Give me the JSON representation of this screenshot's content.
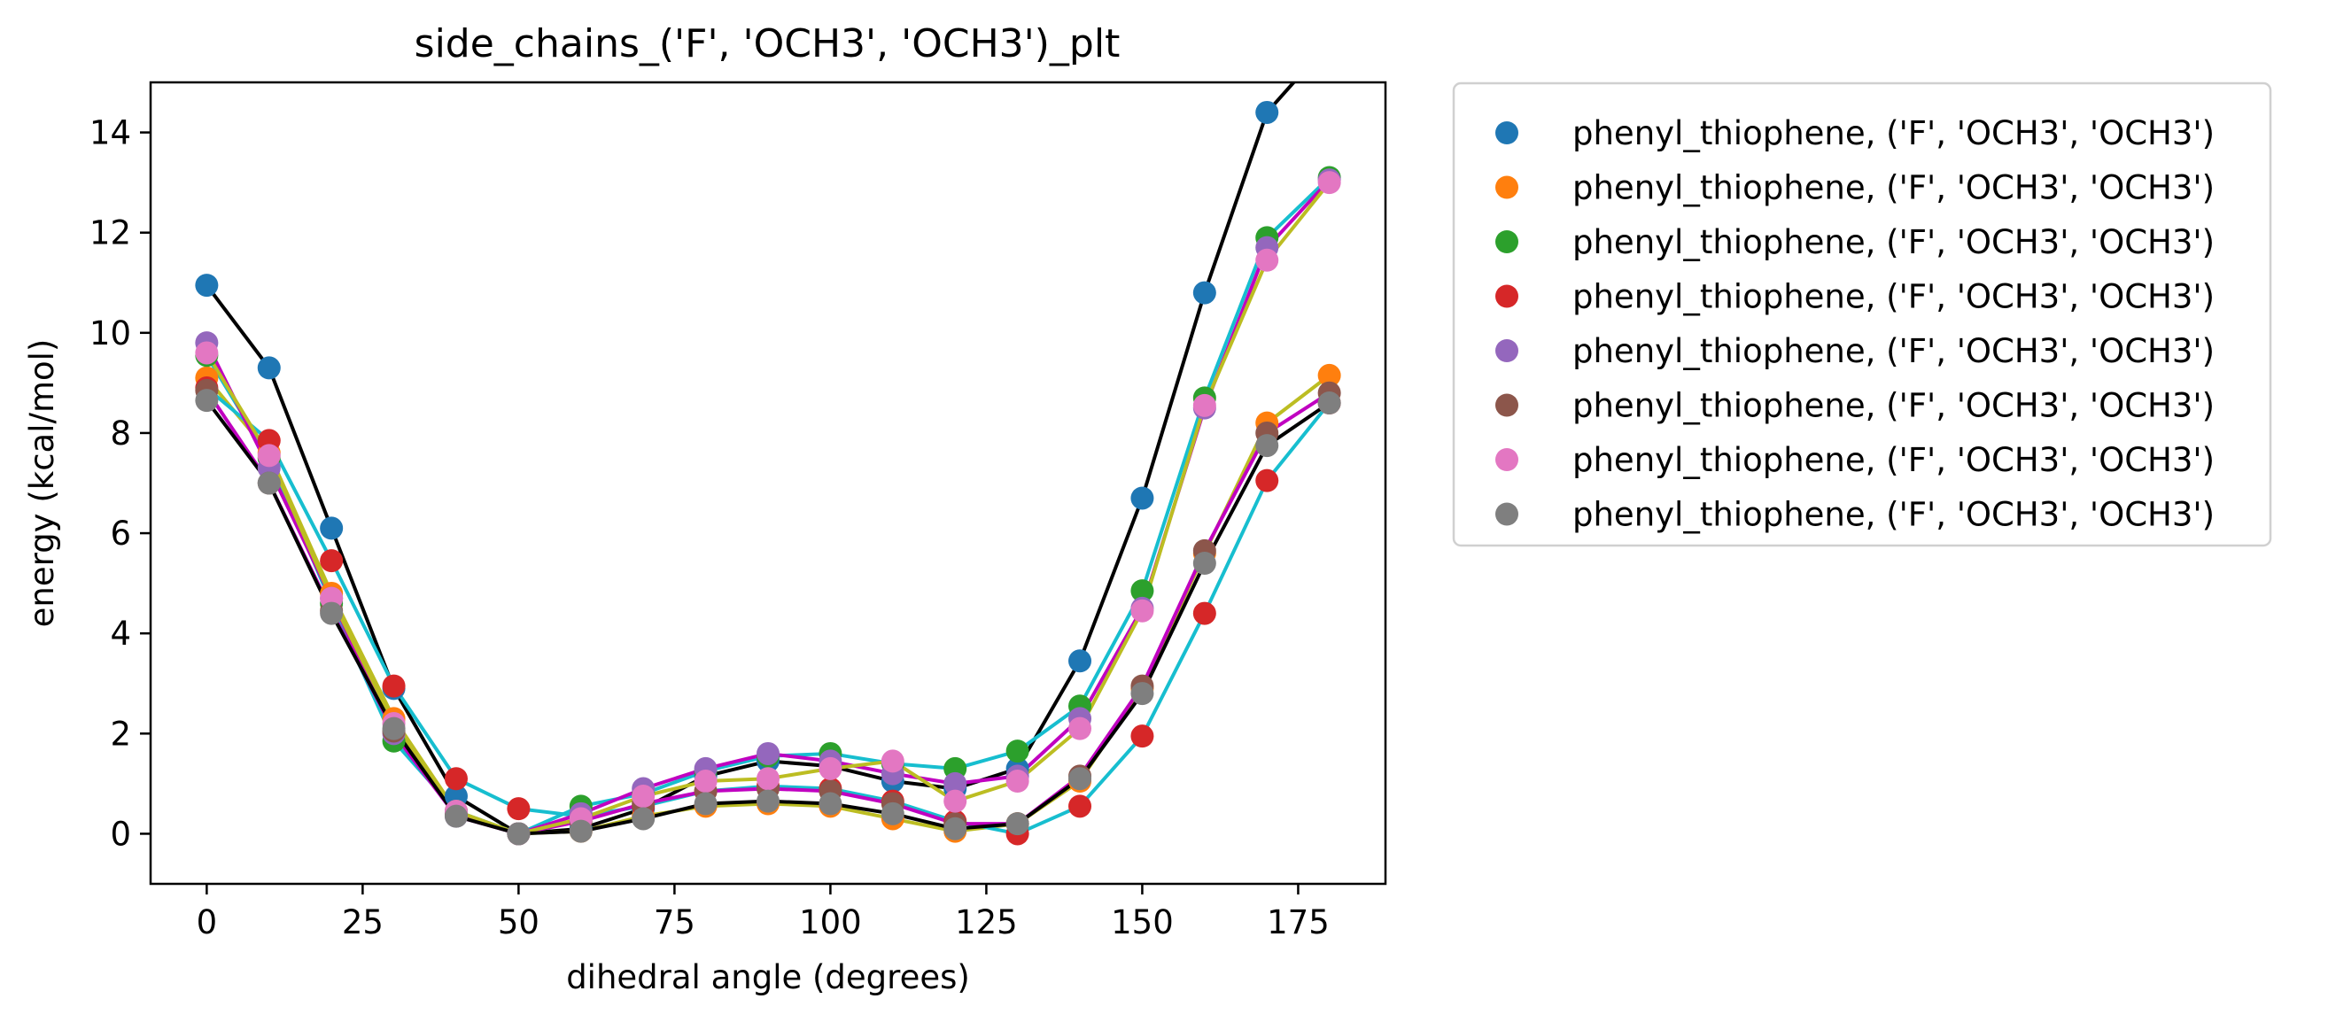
{
  "chart_data": {
    "type": "scatter",
    "title": "side_chains_('F', 'OCH3', 'OCH3')_plt",
    "xlabel": "dihedral angle (degrees)",
    "ylabel": "energy (kcal/mol)",
    "xlim": [
      -9,
      189
    ],
    "ylim": [
      -1,
      15
    ],
    "xticks": [
      0,
      25,
      50,
      75,
      100,
      125,
      150,
      175
    ],
    "yticks": [
      0,
      2,
      4,
      6,
      8,
      10,
      12,
      14
    ],
    "legend_position": "outside-right-top",
    "grid": false,
    "x": [
      0,
      10,
      20,
      30,
      40,
      50,
      60,
      70,
      80,
      90,
      100,
      110,
      120,
      130,
      140,
      150,
      160,
      170,
      180
    ],
    "series": [
      {
        "name": "phenyl_thiophene, ('F', 'OCH3', 'OCH3')",
        "color": "#1f77b4",
        "line_color": "#000000",
        "values": [
          10.95,
          9.3,
          6.1,
          2.9,
          0.75,
          0.0,
          0.1,
          0.5,
          1.15,
          1.45,
          1.35,
          1.05,
          0.9,
          1.3,
          3.45,
          6.7,
          10.8,
          14.4,
          15.8
        ]
      },
      {
        "name": "phenyl_thiophene, ('F', 'OCH3', 'OCH3')",
        "color": "#ff7f0e",
        "line_color": "#bcbd22",
        "values": [
          9.1,
          7.6,
          4.8,
          2.3,
          0.45,
          0.0,
          0.05,
          0.35,
          0.55,
          0.6,
          0.55,
          0.3,
          0.05,
          0.2,
          1.05,
          2.9,
          5.6,
          8.2,
          9.15
        ]
      },
      {
        "name": "phenyl_thiophene, ('F', 'OCH3', 'OCH3')",
        "color": "#2ca02c",
        "line_color": "#17becf",
        "values": [
          9.55,
          7.5,
          4.6,
          1.85,
          0.45,
          0.0,
          0.55,
          0.8,
          1.25,
          1.55,
          1.6,
          1.4,
          1.3,
          1.65,
          2.55,
          4.85,
          8.7,
          11.9,
          13.1
        ]
      },
      {
        "name": "phenyl_thiophene, ('F', 'OCH3', 'OCH3')",
        "color": "#d62728",
        "line_color": "#17becf",
        "values": [
          8.9,
          7.85,
          5.45,
          2.95,
          1.1,
          0.5,
          0.35,
          0.55,
          0.85,
          0.95,
          0.9,
          0.65,
          0.25,
          0.0,
          0.55,
          1.95,
          4.4,
          7.05,
          8.6
        ]
      },
      {
        "name": "phenyl_thiophene, ('F', 'OCH3', 'OCH3')",
        "color": "#9467bd",
        "line_color": "#c000c0",
        "values": [
          9.8,
          7.3,
          4.7,
          2.0,
          0.35,
          0.0,
          0.4,
          0.9,
          1.3,
          1.6,
          1.45,
          1.2,
          1.0,
          1.15,
          2.3,
          4.5,
          8.5,
          11.7,
          13.05
        ]
      },
      {
        "name": "phenyl_thiophene, ('F', 'OCH3', 'OCH3')",
        "color": "#8c564b",
        "line_color": "#c000c0",
        "values": [
          8.85,
          7.0,
          4.45,
          2.05,
          0.4,
          0.0,
          0.25,
          0.6,
          0.85,
          0.9,
          0.85,
          0.6,
          0.2,
          0.2,
          1.15,
          2.95,
          5.65,
          8.0,
          8.8
        ]
      },
      {
        "name": "phenyl_thiophene, ('F', 'OCH3', 'OCH3')",
        "color": "#e377c2",
        "line_color": "#bcbd22",
        "values": [
          9.6,
          7.55,
          4.7,
          2.2,
          0.45,
          0.0,
          0.3,
          0.75,
          1.05,
          1.1,
          1.3,
          1.45,
          0.65,
          1.05,
          2.1,
          4.45,
          8.55,
          11.45,
          13.0
        ]
      },
      {
        "name": "phenyl_thiophene, ('F', 'OCH3', 'OCH3')",
        "color": "#7f7f7f",
        "line_color": "#000000",
        "values": [
          8.65,
          7.0,
          4.4,
          2.1,
          0.35,
          0.0,
          0.05,
          0.3,
          0.6,
          0.65,
          0.6,
          0.4,
          0.1,
          0.2,
          1.1,
          2.8,
          5.4,
          7.75,
          8.6
        ]
      }
    ]
  }
}
